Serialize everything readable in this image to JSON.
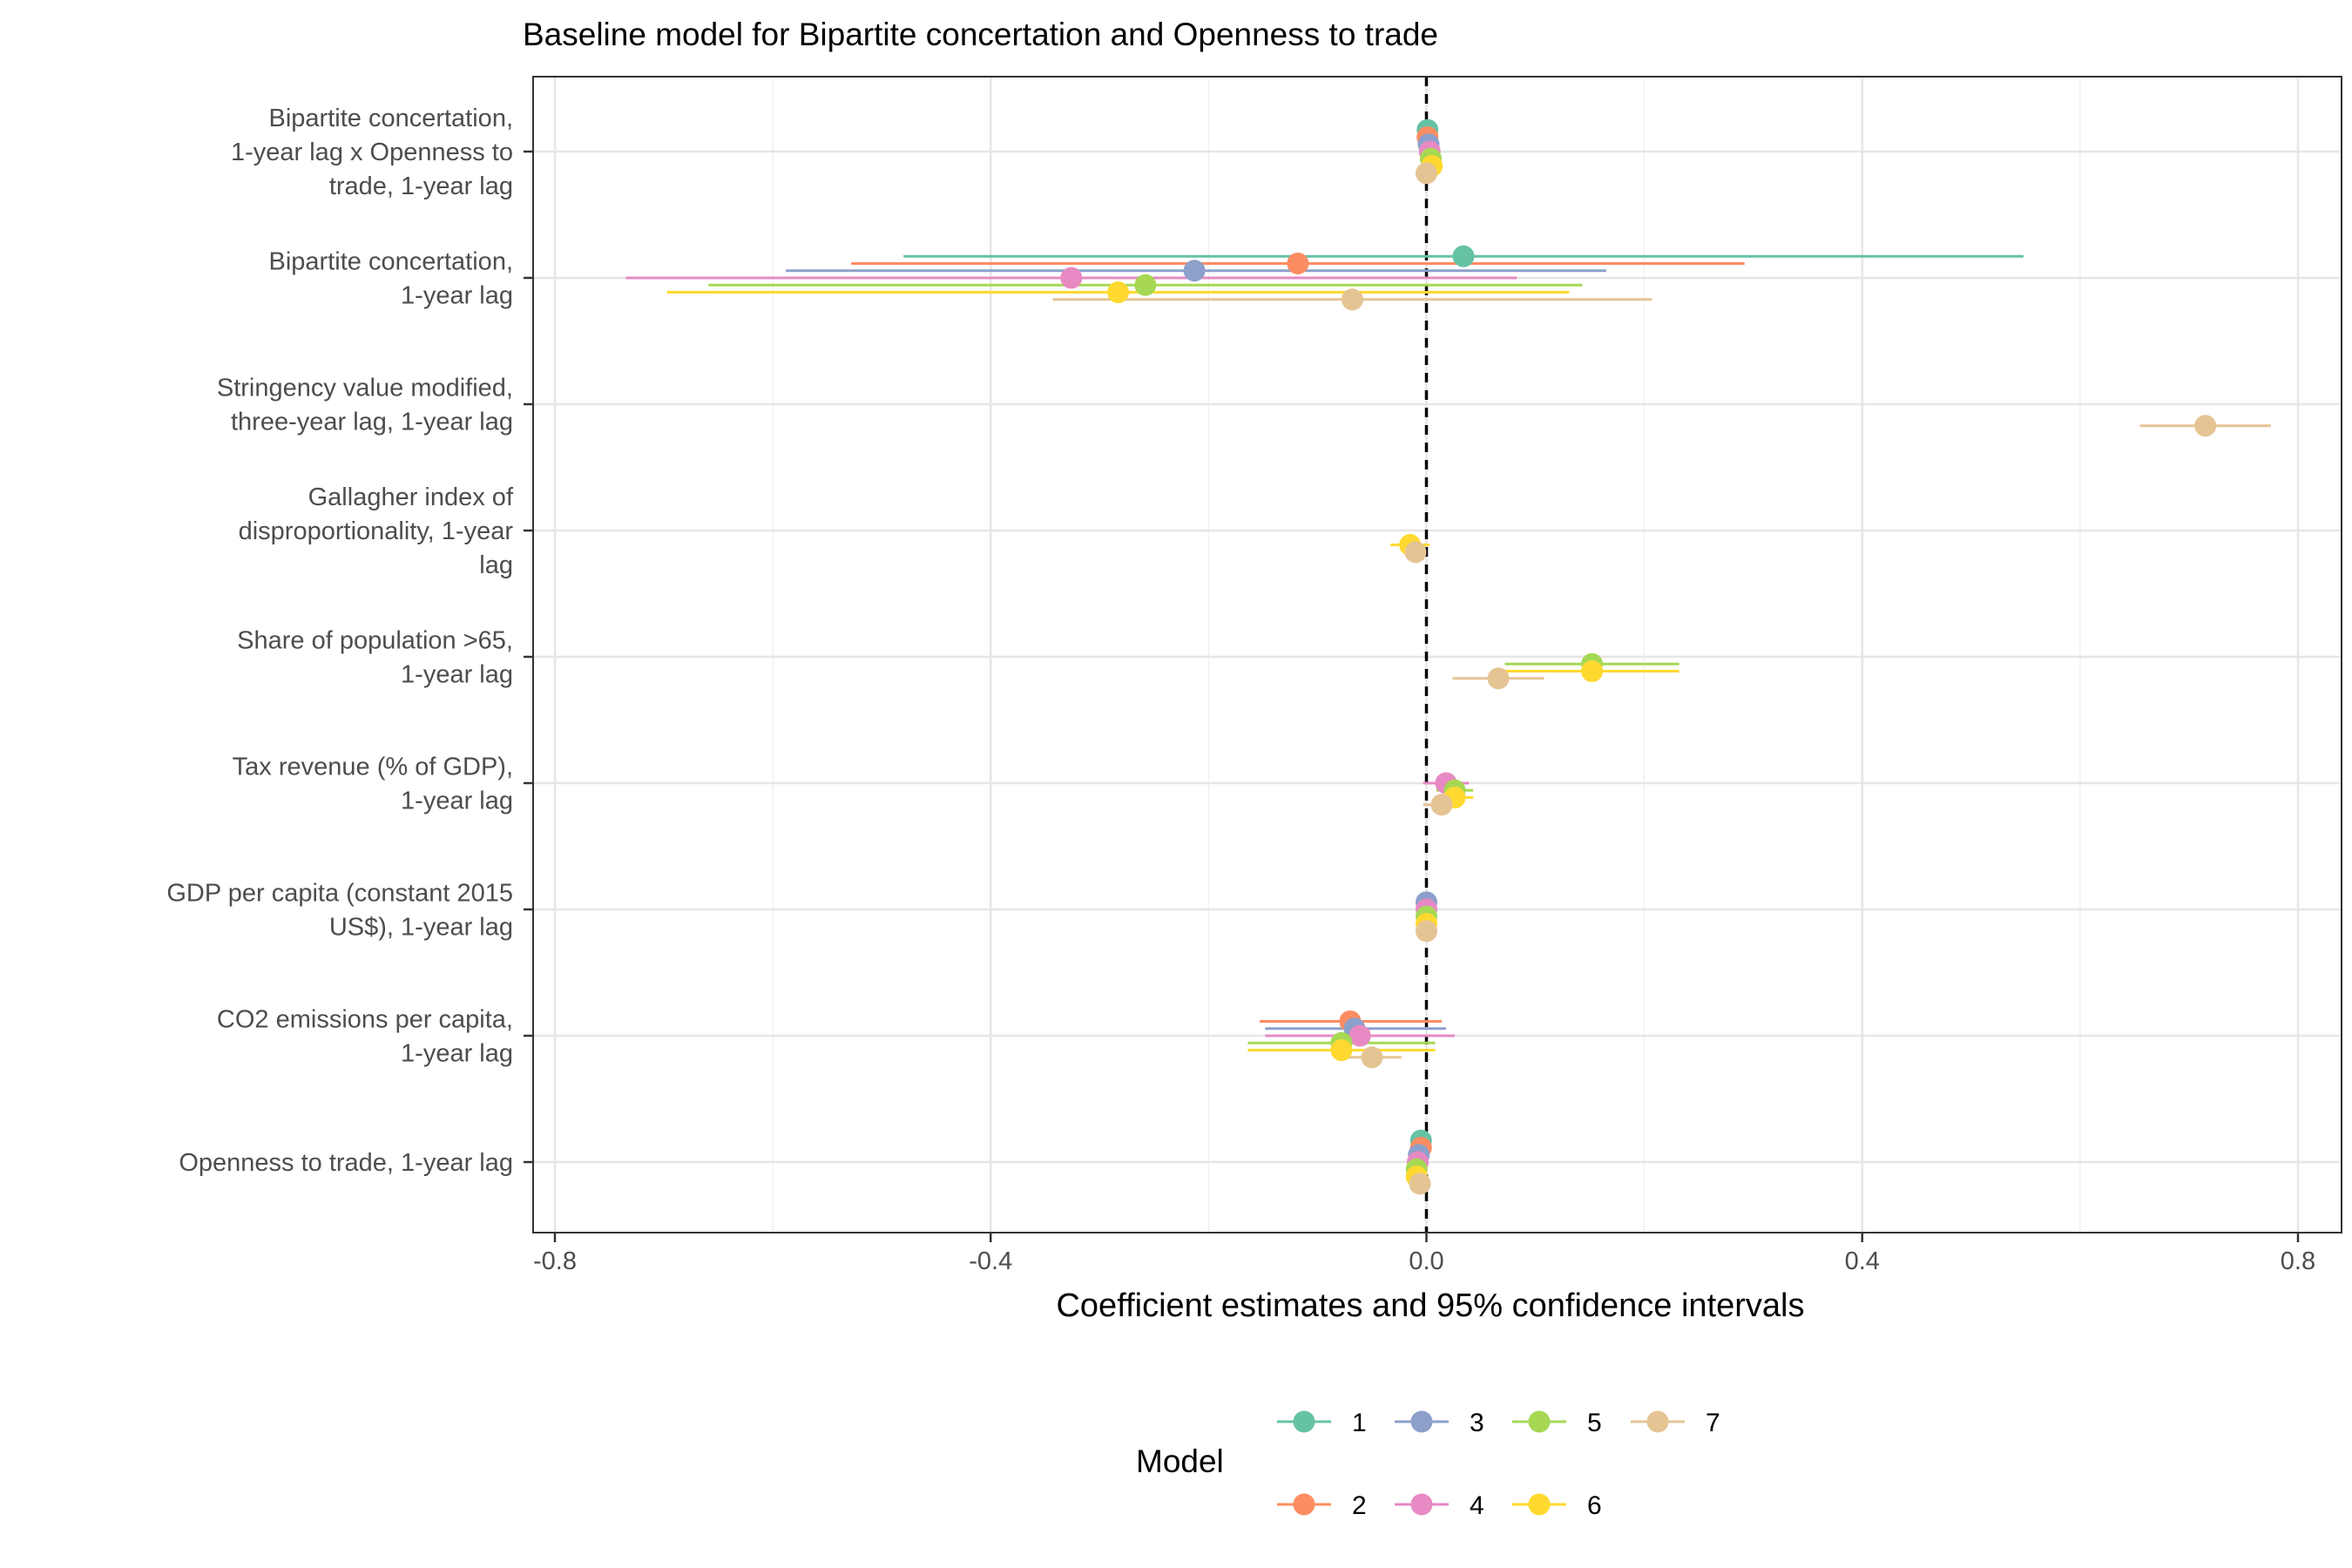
{
  "chart_data": {
    "type": "scatter",
    "subtype": "coefficient plot with horizontal confidence intervals",
    "title": "Baseline model for Bipartite concertation and Openness to trade",
    "xlabel": "Coefficient estimates and 95% confidence intervals",
    "ylabel": "",
    "xlim": [
      -0.82,
      0.84
    ],
    "x_ticks": [
      -0.8,
      -0.4,
      0.0,
      0.4,
      0.8
    ],
    "x_tick_labels": [
      "-0.8",
      "-0.4",
      "0.0",
      "0.4",
      "0.8"
    ],
    "reference_line": 0,
    "grid": true,
    "legend_position": "bottom",
    "legend_title": "Model",
    "categories": [
      "Bipartite concertation,\n1-year lag x Openness to\ntrade, 1-year lag",
      "Bipartite concertation,\n1-year lag",
      "Stringency value modified,\nthree-year lag, 1-year lag",
      "Gallagher index of\ndisproportionality, 1-year\nlag",
      "Share of population >65,\n1-year lag",
      "Tax revenue (% of GDP),\n1-year lag",
      "GDP per capita (constant 2015\nUS$), 1-year lag",
      "CO2 emissions per capita,\n1-year lag",
      "Openness to trade, 1-year lag"
    ],
    "series": [
      {
        "name": "1",
        "color": "#66c2a5",
        "offset": -0.4,
        "estimates": [
          0.001,
          0.034,
          null,
          null,
          null,
          null,
          null,
          null,
          -0.005
        ],
        "ci_low": [
          -0.004,
          -0.48,
          null,
          null,
          null,
          null,
          null,
          null,
          -0.012
        ],
        "ci_high": [
          0.006,
          0.548,
          null,
          null,
          null,
          null,
          null,
          null,
          0.002
        ]
      },
      {
        "name": "2",
        "color": "#fc8d62",
        "offset": -0.267,
        "estimates": [
          0.001,
          -0.118,
          null,
          null,
          null,
          null,
          null,
          -0.07,
          -0.005
        ],
        "ci_low": [
          -0.004,
          -0.528,
          null,
          null,
          null,
          null,
          null,
          -0.153,
          -0.012
        ],
        "ci_high": [
          0.006,
          0.292,
          null,
          null,
          null,
          null,
          null,
          0.014,
          0.002
        ]
      },
      {
        "name": "3",
        "color": "#8da0cb",
        "offset": -0.133,
        "estimates": [
          0.002,
          -0.213,
          null,
          null,
          null,
          null,
          0.0,
          -0.066,
          -0.007
        ],
        "ci_low": [
          -0.003,
          -0.588,
          null,
          null,
          null,
          null,
          -0.003,
          -0.148,
          -0.014
        ],
        "ci_high": [
          0.007,
          0.165,
          null,
          null,
          null,
          null,
          0.003,
          0.018,
          0.0
        ]
      },
      {
        "name": "4",
        "color": "#e78ac3",
        "offset": 0.0,
        "estimates": [
          0.003,
          -0.326,
          null,
          null,
          null,
          0.018,
          0.0,
          -0.061,
          -0.008
        ],
        "ci_low": [
          -0.002,
          -0.735,
          null,
          null,
          null,
          -0.003,
          -0.003,
          -0.148,
          -0.015
        ],
        "ci_high": [
          0.008,
          0.083,
          null,
          null,
          null,
          0.039,
          0.003,
          0.026,
          -0.001
        ]
      },
      {
        "name": "5",
        "color": "#a6d854",
        "offset": 0.133,
        "estimates": [
          0.004,
          -0.258,
          null,
          null,
          0.152,
          0.026,
          0.0,
          -0.078,
          -0.009
        ],
        "ci_low": [
          -0.001,
          -0.659,
          null,
          null,
          0.072,
          0.009,
          -0.003,
          -0.164,
          -0.016
        ],
        "ci_high": [
          0.009,
          0.143,
          null,
          null,
          0.232,
          0.043,
          0.003,
          0.008,
          -0.002
        ]
      },
      {
        "name": "6",
        "color": "#ffd92f",
        "offset": 0.267,
        "estimates": [
          0.005,
          -0.283,
          null,
          -0.015,
          0.152,
          0.026,
          0.0,
          -0.078,
          -0.009
        ],
        "ci_low": [
          0.0,
          -0.697,
          null,
          -0.033,
          0.072,
          0.009,
          -0.003,
          -0.164,
          -0.016
        ],
        "ci_high": [
          0.01,
          0.131,
          null,
          0.003,
          0.232,
          0.043,
          0.003,
          0.008,
          -0.002
        ]
      },
      {
        "name": "7",
        "color": "#e5c494",
        "offset": 0.4,
        "estimates": [
          0.0,
          -0.068,
          0.715,
          -0.01,
          0.066,
          0.014,
          0.0,
          -0.05,
          -0.006
        ],
        "ci_low": [
          -0.004,
          -0.343,
          0.655,
          -0.018,
          0.024,
          -0.003,
          -0.003,
          -0.077,
          -0.011
        ],
        "ci_high": [
          0.004,
          0.207,
          0.775,
          -0.002,
          0.108,
          0.031,
          0.003,
          -0.023,
          -0.001
        ]
      }
    ]
  }
}
